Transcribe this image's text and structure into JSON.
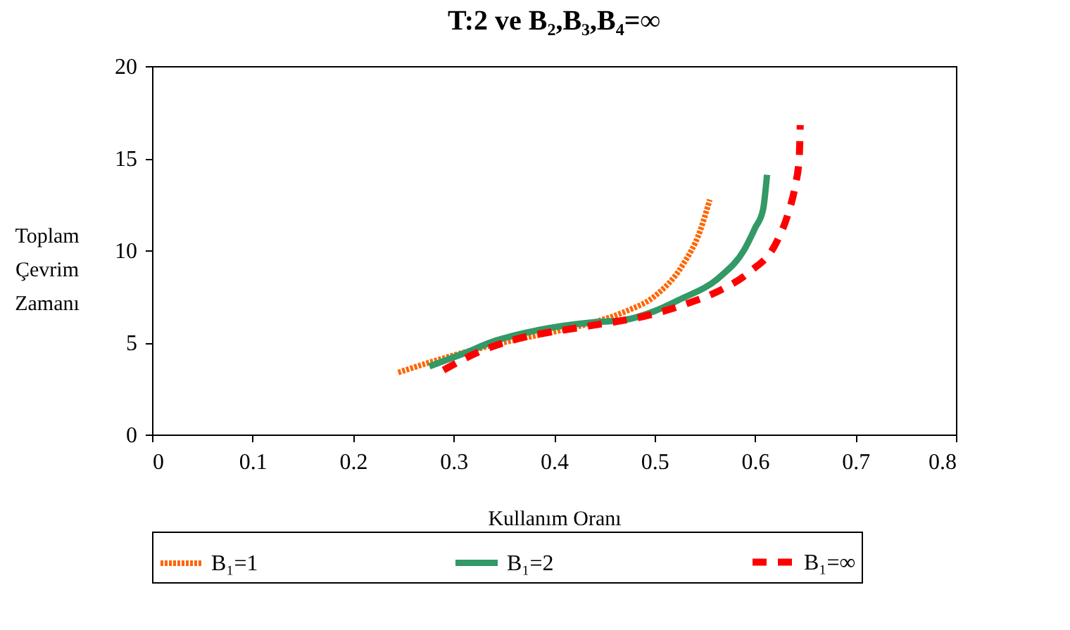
{
  "chart_data": {
    "type": "line",
    "title": "T:2 ve B₂,B₃,B₄=∞",
    "xlabel": "Kullanım Oranı",
    "ylabel": "Toplam Çevrim Zamanı",
    "xlim": [
      0,
      0.8
    ],
    "xticks": [
      0,
      0.1,
      0.2,
      0.3,
      0.4,
      0.5,
      0.6,
      0.7,
      0.8
    ],
    "ylim": [
      0,
      20
    ],
    "yticks": [
      0,
      5,
      10,
      15,
      20
    ],
    "grid": false,
    "legend": "bottom",
    "marker": "none",
    "series": [
      {
        "name": "B₁=1",
        "color": "#ff6600",
        "line_style": "dotted",
        "x": [
          0.245,
          0.3,
          0.35,
          0.402,
          0.44,
          0.472,
          0.5,
          0.528,
          0.545,
          0.555
        ],
        "values": [
          3.37,
          4.3,
          5.0,
          5.6,
          6.1,
          6.7,
          7.5,
          9.2,
          11.0,
          12.75
        ]
      },
      {
        "name": "B₁=2",
        "color": "#339966",
        "line_style": "solid",
        "x": [
          0.276,
          0.31,
          0.342,
          0.378,
          0.44,
          0.468,
          0.5,
          0.524,
          0.566,
          0.589,
          0.6,
          0.608,
          0.612
        ],
        "values": [
          3.7,
          4.4,
          5.1,
          5.6,
          6.1,
          6.2,
          6.7,
          7.3,
          8.6,
          10.0,
          11.2,
          12.2,
          14.1
        ]
      },
      {
        "name": "B₁=∞",
        "color": "#ff0000",
        "line_style": "dashed",
        "x": [
          0.29,
          0.328,
          0.364,
          0.43,
          0.496,
          0.532,
          0.566,
          0.594,
          0.622,
          0.633,
          0.64,
          0.644,
          0.645
        ],
        "values": [
          3.5,
          4.55,
          5.2,
          5.85,
          6.5,
          7.1,
          7.85,
          8.8,
          10.5,
          12.0,
          13.5,
          15.0,
          16.8
        ]
      }
    ]
  }
}
